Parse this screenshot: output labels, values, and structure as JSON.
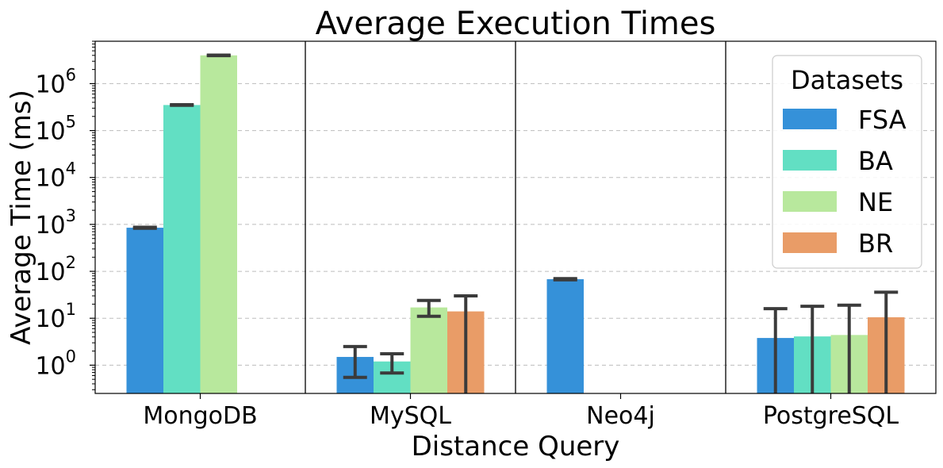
{
  "chart_data": {
    "type": "bar",
    "title": "Average Execution Times",
    "xlabel": "Distance Query",
    "ylabel": "Average Time (ms)",
    "yscale": "log",
    "ylim": [
      0.25,
      8000000
    ],
    "y_ticks": [
      {
        "value": 1,
        "base": "10",
        "exp": "0"
      },
      {
        "value": 10,
        "base": "10",
        "exp": "1"
      },
      {
        "value": 100,
        "base": "10",
        "exp": "2"
      },
      {
        "value": 1000,
        "base": "10",
        "exp": "3"
      },
      {
        "value": 10000,
        "base": "10",
        "exp": "4"
      },
      {
        "value": 100000,
        "base": "10",
        "exp": "5"
      },
      {
        "value": 1000000,
        "base": "10",
        "exp": "6"
      }
    ],
    "grid": "y dashed",
    "legend_title": "Datasets",
    "legend_position": "top-right",
    "categories": [
      "MongoDB",
      "MySQL",
      "Neo4j",
      "PostgreSQL"
    ],
    "series": [
      {
        "name": "FSA",
        "color": "#3591d9",
        "values": [
          850,
          1.5,
          68,
          3.8
        ],
        "err_low": [
          830,
          0.55,
          66,
          0.2
        ],
        "err_high": [
          870,
          2.5,
          70,
          16
        ]
      },
      {
        "name": "BA",
        "color": "#62dfc3",
        "values": [
          350000,
          1.2,
          null,
          4.1
        ],
        "err_low": [
          345000,
          0.68,
          null,
          0.2
        ],
        "err_high": [
          355000,
          1.75,
          null,
          18
        ]
      },
      {
        "name": "NE",
        "color": "#b8e89d",
        "values": [
          4000000,
          17,
          null,
          4.4
        ],
        "err_low": [
          3950000,
          11,
          null,
          0.2
        ],
        "err_high": [
          4050000,
          24,
          null,
          19
        ]
      },
      {
        "name": "BR",
        "color": "#e99c67",
        "values": [
          null,
          14,
          null,
          10.5
        ],
        "err_low": [
          null,
          0.2,
          null,
          0.2
        ],
        "err_high": [
          null,
          30,
          null,
          36
        ]
      }
    ]
  }
}
